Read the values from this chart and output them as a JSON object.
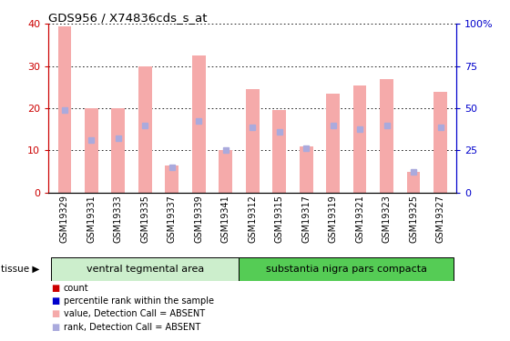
{
  "title": "GDS956 / X74836cds_s_at",
  "samples": [
    "GSM19329",
    "GSM19331",
    "GSM19333",
    "GSM19335",
    "GSM19337",
    "GSM19339",
    "GSM19341",
    "GSM19312",
    "GSM19315",
    "GSM19317",
    "GSM19319",
    "GSM19321",
    "GSM19323",
    "GSM19325",
    "GSM19327"
  ],
  "bar_values": [
    39.5,
    20.0,
    20.0,
    30.0,
    6.5,
    32.5,
    10.0,
    24.5,
    19.5,
    11.0,
    23.5,
    25.5,
    27.0,
    5.0,
    24.0
  ],
  "rank_values": [
    19.5,
    12.5,
    13.0,
    16.0,
    6.0,
    17.0,
    10.0,
    15.5,
    14.5,
    10.5,
    16.0,
    15.0,
    16.0,
    5.0,
    15.5
  ],
  "bar_color": "#f5aaaa",
  "rank_color": "#aaaadd",
  "ylim_left": [
    0,
    40
  ],
  "ylim_right": [
    0,
    100
  ],
  "yticks_left": [
    0,
    10,
    20,
    30,
    40
  ],
  "yticks_right": [
    0,
    25,
    50,
    75,
    100
  ],
  "ytick_labels_right": [
    "0",
    "25",
    "50",
    "75",
    "100%"
  ],
  "axis_color_left": "#cc0000",
  "axis_color_right": "#0000cc",
  "group1_label": "ventral tegmental area",
  "group2_label": "substantia nigra pars compacta",
  "group1_color": "#cceecc",
  "group2_color": "#55cc55",
  "n_group1": 7,
  "n_group2": 8,
  "legend_items": [
    {
      "label": "count",
      "color": "#cc0000"
    },
    {
      "label": "percentile rank within the sample",
      "color": "#0000cc"
    },
    {
      "label": "value, Detection Call = ABSENT",
      "color": "#f5aaaa"
    },
    {
      "label": "rank, Detection Call = ABSENT",
      "color": "#aaaadd"
    }
  ],
  "bar_width": 0.5,
  "xticklabel_bg": "#cccccc",
  "tissue_arrow": "tissue ▶"
}
